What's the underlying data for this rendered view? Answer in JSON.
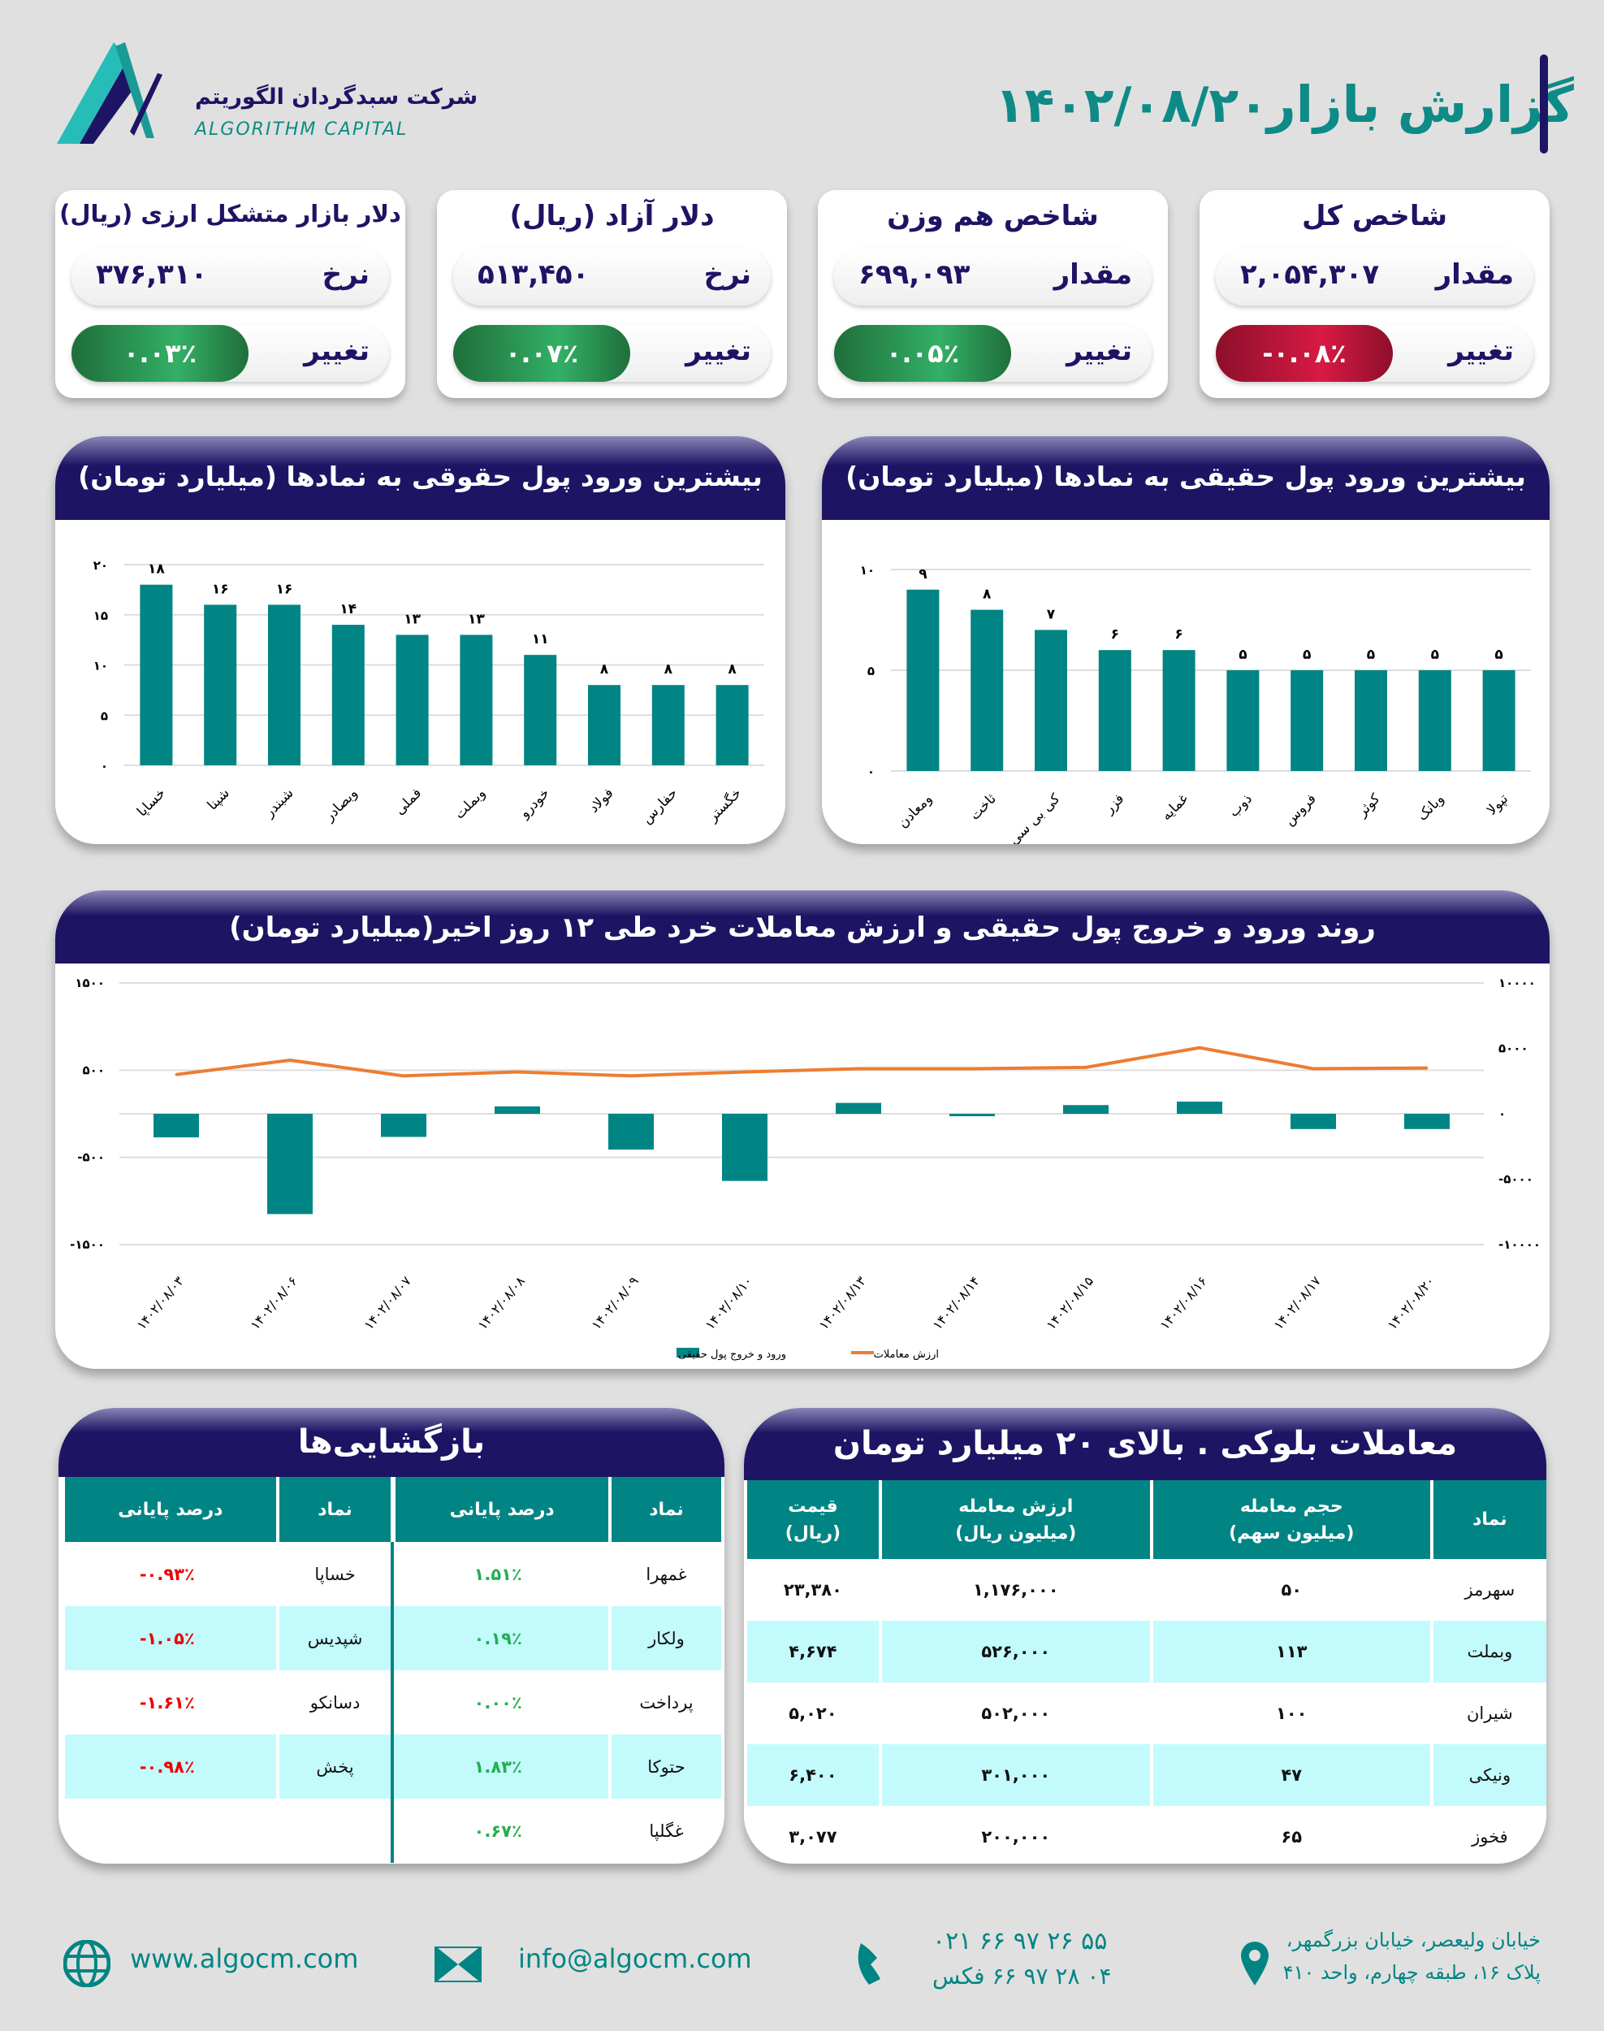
{
  "header": {
    "title": "گزارش بازار",
    "date": "۱۴۰۲/۰۸/۲۰",
    "company_fa": "شرکت سبدگردان الگوریتم",
    "company_en": "ALGORITHM CAPITAL"
  },
  "cards": [
    {
      "title": "شاخص کل",
      "value_label": "مقدار",
      "value": "۲,۰۵۴,۳۰۷",
      "change_label": "تغییر",
      "change": "-۰.۰۸٪",
      "direction": "negative"
    },
    {
      "title": "شاخص هم وزن",
      "value_label": "مقدار",
      "value": "۶۹۹,۰۹۳",
      "change_label": "تغییر",
      "change": "۰.۰۵٪",
      "direction": "positive"
    },
    {
      "title": "دلار آزاد (ریال)",
      "value_label": "نرخ",
      "value": "۵۱۳,۴۵۰",
      "change_label": "تغییر",
      "change": "۰.۰۷٪",
      "direction": "positive"
    },
    {
      "title": "دلار بازار متشکل ارزی (ریال)",
      "value_label": "نرخ",
      "value": "۳۷۶,۳۱۰",
      "change_label": "تغییر",
      "change": "۰.۰۳٪",
      "direction": "positive"
    }
  ],
  "colors": {
    "navy": "#1e1464",
    "teal": "#008584",
    "green": "#2da05a",
    "red": "#d81a44",
    "orange": "#ed7d31",
    "row_alt": "#c3fbfd"
  },
  "chart_data": [
    {
      "type": "bar",
      "title": "بیشترین ورود پول حقوقی به نمادها (میلیارد تومان)",
      "categories": [
        "خساپا",
        "شپنا",
        "شبندر",
        "وبصادر",
        "فملی",
        "وبملت",
        "خودرو",
        "فولاد",
        "حفارس",
        "خگستر"
      ],
      "values": [
        18,
        16,
        16,
        14,
        13,
        13,
        11,
        8,
        8,
        8
      ],
      "ylim": [
        0,
        20
      ],
      "yticks": [
        0,
        5,
        10,
        15,
        20
      ],
      "grid": true
    },
    {
      "type": "bar",
      "title": "بیشترین ورود پول حقیقی به نمادها (میلیارد تومان)",
      "categories": [
        "ومعادن",
        "ثاخت",
        "کی بی سی",
        "فزر",
        "غمایه",
        "ذوب",
        "فروس",
        "کوثر",
        "وبانک",
        "تپولا"
      ],
      "values": [
        9,
        8,
        7,
        6,
        6,
        5,
        5,
        5,
        5,
        5
      ],
      "ylim": [
        0,
        10
      ],
      "yticks": [
        0,
        5,
        10
      ],
      "grid": true
    },
    {
      "type": "bar+line",
      "title": "روند ورود و خروج پول حقیقی و ارزش معاملات خرد طی ۱۲ روز اخیر(میلیارد تومان)",
      "categories": [
        "۱۴۰۲/۰۸/۰۳",
        "۱۴۰۲/۰۸/۰۶",
        "۱۴۰۲/۰۸/۰۷",
        "۱۴۰۲/۰۸/۰۸",
        "۱۴۰۲/۰۸/۰۹",
        "۱۴۰۲/۰۸/۱۰",
        "۱۴۰۲/۰۸/۱۳",
        "۱۴۰۲/۰۸/۱۴",
        "۱۴۰۲/۰۸/۱۵",
        "۱۴۰۲/۰۸/۱۶",
        "۱۴۰۲/۰۸/۱۷",
        "۱۴۰۲/۰۸/۲۰"
      ],
      "series": [
        {
          "name": "ورود و خروج پول حقیقی",
          "type": "bar",
          "axis": "left",
          "values": [
            -270,
            -1150,
            -265,
            85,
            -410,
            -770,
            125,
            -25,
            100,
            140,
            -175,
            -175
          ]
        },
        {
          "name": "ارزش معاملات",
          "type": "line",
          "axis": "right",
          "values": [
            3000,
            4100,
            2900,
            3200,
            2900,
            3200,
            3450,
            3450,
            3550,
            5050,
            3450,
            3500
          ]
        }
      ],
      "ylim_left": [
        -1500,
        1500
      ],
      "yticks_left": [
        "-۱۵۰۰",
        "-۵۰۰",
        "۵۰۰",
        "۱۵۰۰"
      ],
      "ylim_right": [
        -10000,
        10000
      ],
      "yticks_right": [
        "-۱۰۰۰۰",
        "-۵۰۰۰",
        "۰",
        "۵۰۰۰",
        "۱۰۰۰۰"
      ],
      "legend": "bottom",
      "grid": true
    }
  ],
  "reopenings": {
    "title": "بازگشایی‌ها",
    "headers": [
      "نماد",
      "درصد پایانی",
      "نماد",
      "درصد پایانی"
    ],
    "rows": [
      [
        "غمهرا",
        "۱.۵۱٪",
        "خساپا",
        "-۰.۹۳٪"
      ],
      [
        "ولکار",
        "۰.۱۹٪",
        "شپدیس",
        "-۱.۰۵٪"
      ],
      [
        "پرداخت",
        "۰.۰۰٪",
        "دسانکو",
        "-۱.۶۱٪"
      ],
      [
        "حتوکا",
        "۱.۸۳٪",
        "پخش",
        "-۰.۹۸٪"
      ],
      [
        "غگلپا",
        "۰.۶۷٪",
        "",
        ""
      ]
    ]
  },
  "block_trades": {
    "title": "معاملات بلوکی . بالای ۲۰ میلیارد تومان",
    "headers": [
      [
        "نماد",
        ""
      ],
      [
        "حجم معامله",
        "(میلیون سهم)"
      ],
      [
        "ارزش معامله",
        "(میلیون ریال)"
      ],
      [
        "قیمت",
        "(ریال)"
      ]
    ],
    "rows": [
      [
        "سهرمز",
        "۵۰",
        "۱,۱۷۶,۰۰۰",
        "۲۳,۳۸۰"
      ],
      [
        "وبملت",
        "۱۱۳",
        "۵۲۶,۰۰۰",
        "۴,۶۷۴"
      ],
      [
        "شیران",
        "۱۰۰",
        "۵۰۲,۰۰۰",
        "۵,۰۲۰"
      ],
      [
        "ونیکی",
        "۴۷",
        "۳۰۱,۰۰۰",
        "۶,۴۰۰"
      ],
      [
        "فخوز",
        "۶۵",
        "۲۰۰,۰۰۰",
        "۳,۰۷۷"
      ]
    ]
  },
  "footer": {
    "website": "www.algocm.com",
    "email": "info@algocm.com",
    "phone": "۰۲۱ ۶۶ ۹۷ ۲۶ ۵۵",
    "fax": "۰۴ ۲۸ ۹۷ ۶۶ فکس",
    "address_line1": "خیابان ولیعصر، خیابان بزرگمهر،",
    "address_line2": "پلاک ۱۶، طبقه چهارم، واحد ۴۱۰"
  }
}
